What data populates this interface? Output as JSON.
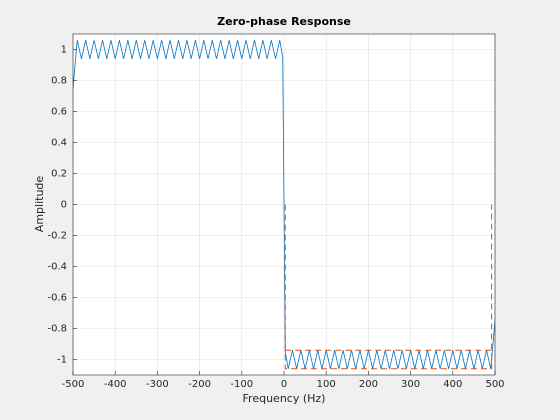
{
  "chart_data": {
    "type": "line",
    "title": "Zero-phase Response",
    "x_label": "Frequency (Hz)",
    "y_label": "Amplitude",
    "xlim": [
      -500,
      500
    ],
    "xticks": [
      -500,
      -400,
      -300,
      -200,
      -100,
      0,
      100,
      200,
      300,
      400,
      500
    ],
    "ylim": [
      -1.1,
      1.1
    ],
    "yticks": [
      -1,
      -0.8,
      -0.6,
      -0.4,
      -0.2,
      0,
      0.2,
      0.4,
      0.6,
      0.8,
      1
    ],
    "grid": true,
    "series": [
      {
        "color": "#0072bd",
        "line_style": "solid",
        "x": [
          -500,
          -490,
          -480,
          -470,
          -460,
          -450,
          -440,
          -430,
          -420,
          -410,
          -400,
          -390,
          -380,
          -370,
          -360,
          -350,
          -340,
          -330,
          -320,
          -310,
          -300,
          -290,
          -280,
          -270,
          -260,
          -250,
          -240,
          -230,
          -220,
          -210,
          -200,
          -190,
          -180,
          -170,
          -160,
          -150,
          -140,
          -130,
          -120,
          -110,
          -100,
          -90,
          -80,
          -70,
          -60,
          -50,
          -40,
          -30,
          -20,
          -10,
          -3,
          0,
          3,
          10,
          20,
          30,
          40,
          50,
          60,
          70,
          80,
          90,
          100,
          110,
          120,
          130,
          140,
          150,
          160,
          170,
          180,
          190,
          200,
          210,
          220,
          230,
          240,
          250,
          260,
          270,
          280,
          290,
          300,
          310,
          320,
          330,
          340,
          350,
          360,
          370,
          380,
          390,
          400,
          410,
          420,
          430,
          440,
          450,
          460,
          470,
          480,
          490,
          500
        ],
        "values": [
          0.75,
          1.06,
          0.94,
          1.06,
          0.94,
          1.06,
          0.94,
          1.06,
          0.94,
          1.06,
          0.94,
          1.06,
          0.94,
          1.06,
          0.94,
          1.06,
          0.94,
          1.06,
          0.94,
          1.06,
          0.94,
          1.06,
          0.94,
          1.06,
          0.94,
          1.06,
          0.94,
          1.06,
          0.94,
          1.06,
          0.94,
          1.06,
          0.94,
          1.06,
          0.94,
          1.06,
          0.94,
          1.06,
          0.94,
          1.06,
          0.94,
          1.06,
          0.94,
          1.06,
          0.94,
          1.06,
          0.94,
          1.06,
          0.94,
          1.06,
          0.95,
          0,
          -0.95,
          -1.06,
          -0.94,
          -1.06,
          -0.94,
          -1.06,
          -0.94,
          -1.06,
          -0.94,
          -1.06,
          -0.94,
          -1.06,
          -0.94,
          -1.06,
          -0.94,
          -1.06,
          -0.94,
          -1.06,
          -0.94,
          -1.06,
          -0.94,
          -1.06,
          -0.94,
          -1.06,
          -0.94,
          -1.06,
          -0.94,
          -1.06,
          -0.94,
          -1.06,
          -0.94,
          -1.06,
          -0.94,
          -1.06,
          -0.94,
          -1.06,
          -0.94,
          -1.06,
          -0.94,
          -1.06,
          -0.94,
          -1.06,
          -0.94,
          -1.06,
          -0.94,
          -1.06,
          -0.94,
          -1.06,
          -0.94,
          -1.06,
          -0.75
        ]
      },
      {
        "color": "#d95319",
        "line_style": "dashed",
        "x": [
          3,
          3,
          492,
          492,
          null,
          3,
          492
        ],
        "values": [
          0,
          -1.06,
          -1.06,
          0,
          null,
          -0.94,
          -0.94
        ]
      }
    ]
  }
}
